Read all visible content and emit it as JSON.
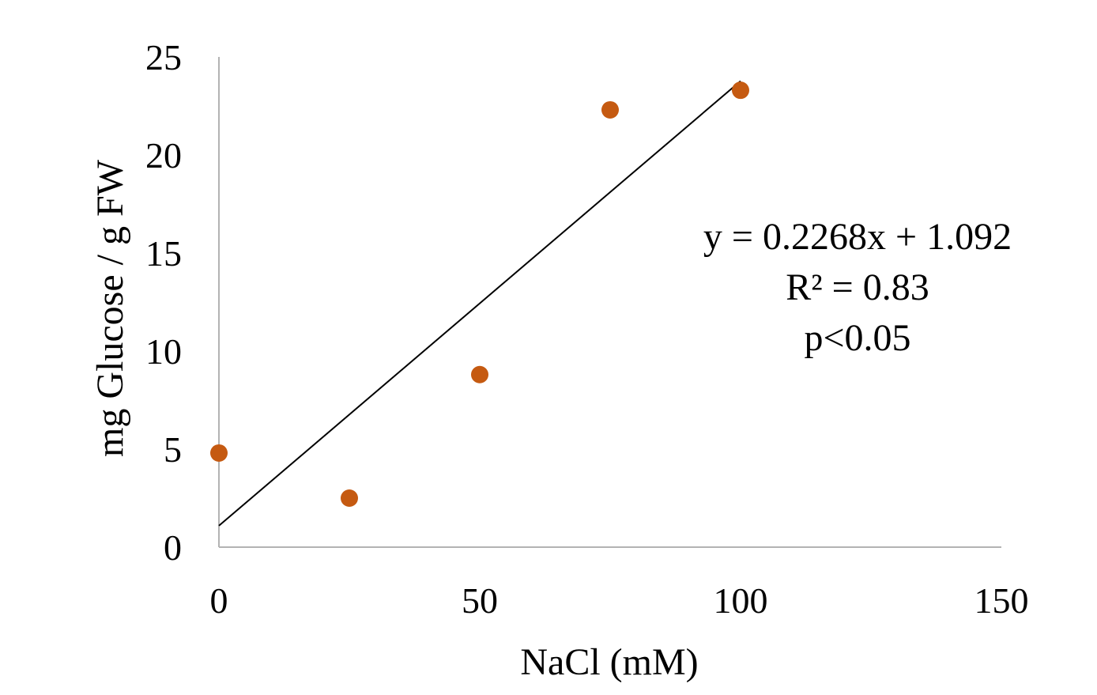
{
  "chart_data": {
    "type": "scatter",
    "xlabel": "NaCl (mM)",
    "ylabel": "mg Glucose / g FW",
    "xlim": [
      0,
      150
    ],
    "ylim": [
      0,
      25
    ],
    "x_ticks": [
      "0",
      "50",
      "100",
      "150"
    ],
    "y_ticks": [
      "0",
      "5",
      "10",
      "15",
      "20",
      "25"
    ],
    "grid": false,
    "series": [
      {
        "x": [
          0,
          25,
          50,
          75,
          100
        ],
        "y": [
          4.8,
          2.5,
          8.8,
          22.3,
          23.3
        ],
        "color": "#C55A11"
      }
    ],
    "trendline": {
      "slope": 0.2268,
      "intercept": 1.092,
      "x_range": [
        0,
        100
      ],
      "color": "#000000"
    },
    "annotations": {
      "equation": "y = 0.2268x + 1.092",
      "r_squared": "R² = 0.83",
      "p_value": "p<0.05"
    }
  }
}
